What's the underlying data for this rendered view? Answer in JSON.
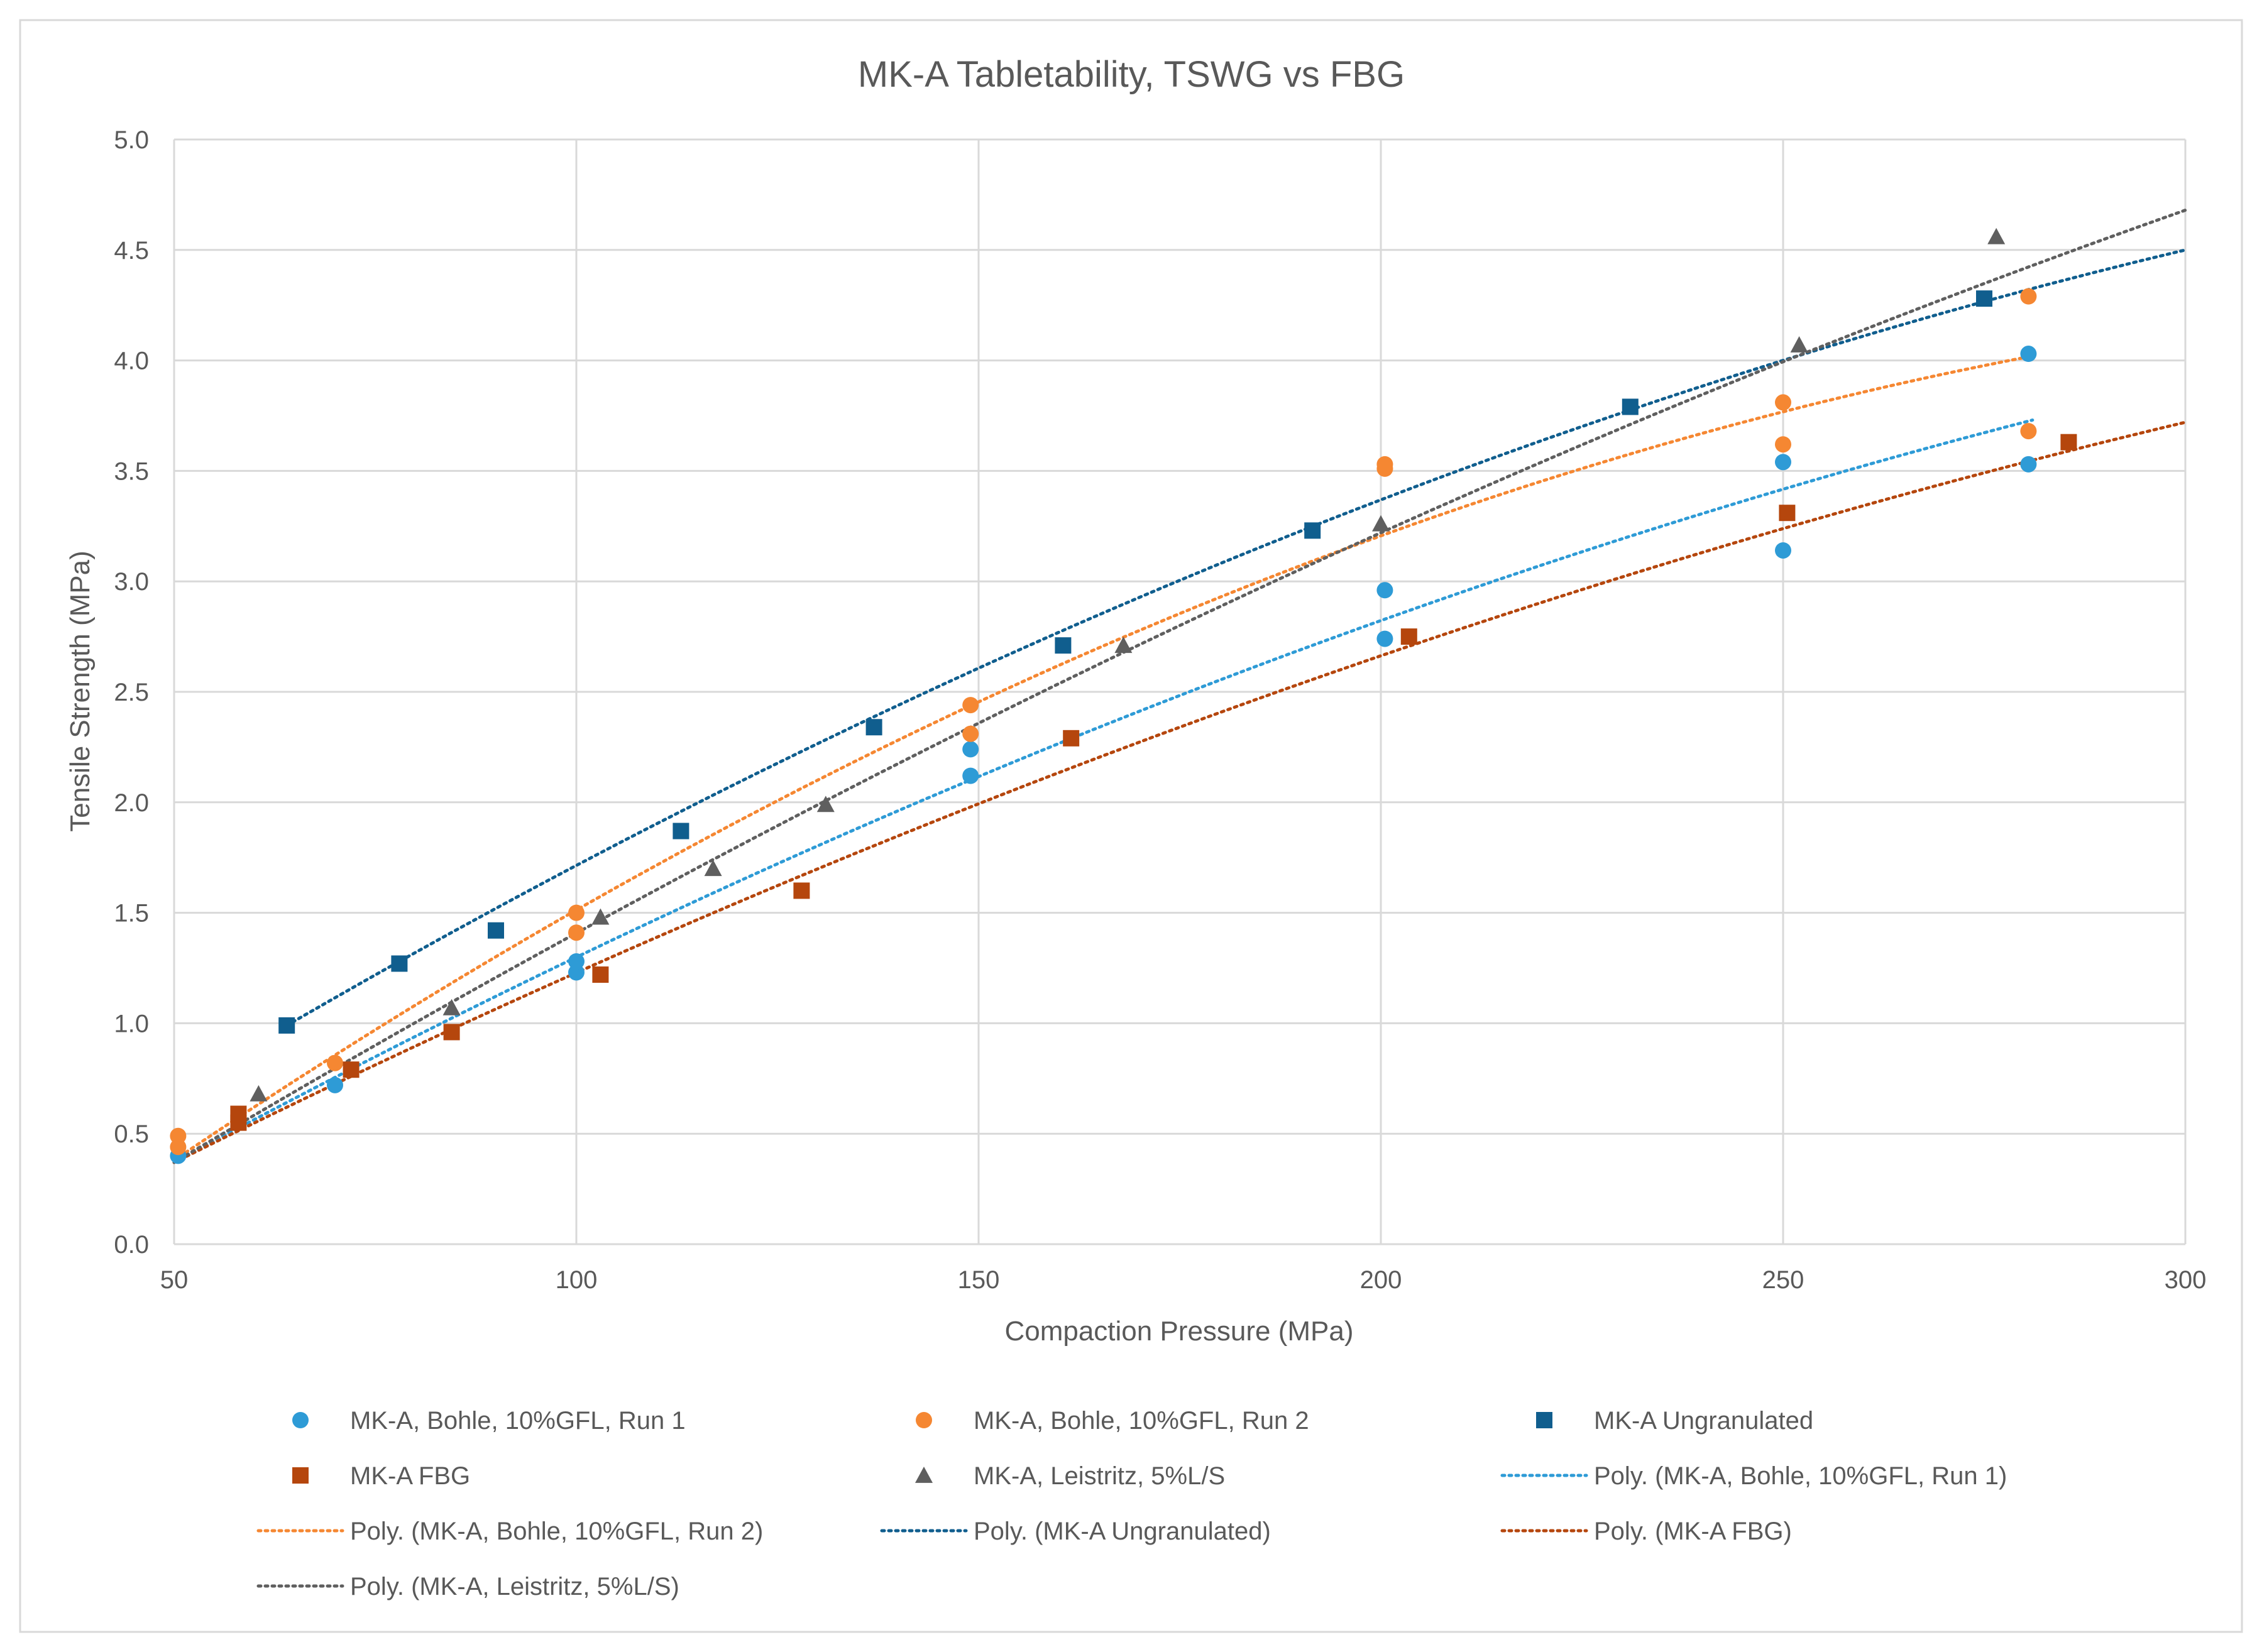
{
  "chart_data": {
    "type": "scatter",
    "title": "MK-A Tabletability, TSWG vs FBG",
    "xlabel": "Compaction Pressure (MPa)",
    "ylabel": "Tensile Strength (MPa)",
    "xlim": [
      50,
      300
    ],
    "ylim": [
      0,
      5
    ],
    "xticks": [
      50,
      100,
      150,
      200,
      250,
      300
    ],
    "yticks": [
      "0.0",
      "0.5",
      "1.0",
      "1.5",
      "2.0",
      "2.5",
      "3.0",
      "3.5",
      "4.0",
      "4.5",
      "5.0"
    ],
    "grid": true,
    "legend_position": "bottom",
    "series": [
      {
        "name": "MK-A, Bohle, 10%GFL, Run 1",
        "marker": "circle",
        "color": "#2E9BD6",
        "points": [
          [
            50.5,
            0.4
          ],
          [
            70,
            0.72
          ],
          [
            100,
            1.23
          ],
          [
            100,
            1.28
          ],
          [
            149,
            2.12
          ],
          [
            149,
            2.24
          ],
          [
            200.5,
            2.74
          ],
          [
            200.5,
            2.96
          ],
          [
            250,
            3.14
          ],
          [
            250,
            3.54
          ],
          [
            280.5,
            3.53
          ],
          [
            280.5,
            4.03
          ]
        ]
      },
      {
        "name": "MK-A, Bohle, 10%GFL, Run 2",
        "marker": "circle",
        "color": "#F58732",
        "points": [
          [
            50.5,
            0.44
          ],
          [
            50.5,
            0.49
          ],
          [
            70,
            0.82
          ],
          [
            100,
            1.41
          ],
          [
            100,
            1.5
          ],
          [
            149,
            2.31
          ],
          [
            149,
            2.44
          ],
          [
            200.5,
            3.51
          ],
          [
            200.5,
            3.53
          ],
          [
            250,
            3.62
          ],
          [
            250,
            3.81
          ],
          [
            280.5,
            3.68
          ],
          [
            280.5,
            4.29
          ]
        ]
      },
      {
        "name": "MK-A Ungranulated",
        "marker": "square",
        "color": "#105E8E",
        "points": [
          [
            64,
            0.99
          ],
          [
            78,
            1.27
          ],
          [
            90,
            1.42
          ],
          [
            113,
            1.87
          ],
          [
            137,
            2.34
          ],
          [
            160.5,
            2.71
          ],
          [
            191.5,
            3.23
          ],
          [
            231,
            3.79
          ],
          [
            275,
            4.28
          ]
        ]
      },
      {
        "name": "MK-A FBG",
        "marker": "square",
        "color": "#B5460D",
        "points": [
          [
            58,
            0.55
          ],
          [
            58,
            0.59
          ],
          [
            72,
            0.79
          ],
          [
            84.5,
            0.96
          ],
          [
            103,
            1.22
          ],
          [
            128,
            1.6
          ],
          [
            161.5,
            2.29
          ],
          [
            203.5,
            2.75
          ],
          [
            250.5,
            3.31
          ],
          [
            285.5,
            3.63
          ]
        ]
      },
      {
        "name": "MK-A, Leistritz, 5%L/S",
        "marker": "triangle",
        "color": "#5F5F5F",
        "points": [
          [
            60.5,
            0.68
          ],
          [
            84.5,
            1.07
          ],
          [
            103,
            1.48
          ],
          [
            117,
            1.7
          ],
          [
            131,
            1.99
          ],
          [
            168,
            2.71
          ],
          [
            200,
            3.26
          ],
          [
            252,
            4.07
          ],
          [
            276.5,
            4.56
          ]
        ]
      }
    ],
    "trendlines": [
      {
        "name": "Poly. (MK-A, Bohle, 10%GFL, Run 1)",
        "series": "MK-A, Bohle, 10%GFL, Run 1",
        "type": "poly2",
        "color": "#2E9BD6",
        "x_range": [
          50,
          281
        ],
        "anchors": [
          [
            50,
            0.37
          ],
          [
            165,
            2.34
          ],
          [
            281,
            3.73
          ]
        ]
      },
      {
        "name": "Poly. (MK-A, Bohle, 10%GFL, Run 2)",
        "series": "MK-A, Bohle, 10%GFL, Run 2",
        "type": "poly2",
        "color": "#F58732",
        "x_range": [
          50,
          281
        ],
        "anchors": [
          [
            50,
            0.38
          ],
          [
            165,
            2.7
          ],
          [
            281,
            4.02
          ]
        ]
      },
      {
        "name": "Poly. (MK-A Ungranulated)",
        "series": "MK-A Ungranulated",
        "type": "poly2",
        "color": "#105E8E",
        "x_range": [
          64,
          300
        ],
        "anchors": [
          [
            64,
            0.99
          ],
          [
            182,
            3.11
          ],
          [
            300,
            4.5
          ]
        ]
      },
      {
        "name": "Poly. (MK-A FBG)",
        "series": "MK-A FBG",
        "type": "poly2",
        "color": "#B5460D",
        "x_range": [
          50,
          300
        ],
        "anchors": [
          [
            50,
            0.37
          ],
          [
            175,
            2.34
          ],
          [
            300,
            3.72
          ]
        ]
      },
      {
        "name": "Poly. (MK-A, Leistritz, 5%L/S)",
        "series": "MK-A, Leistritz, 5%L/S",
        "type": "poly2",
        "color": "#5F5F5F",
        "x_range": [
          50,
          300
        ],
        "anchors": [
          [
            50,
            0.37
          ],
          [
            175,
            2.8
          ],
          [
            300,
            4.68
          ]
        ]
      }
    ],
    "legend": [
      "MK-A, Bohle, 10%GFL, Run 1",
      "MK-A, Bohle, 10%GFL, Run 2",
      "MK-A Ungranulated",
      "MK-A FBG",
      "MK-A, Leistritz, 5%L/S",
      "Poly. (MK-A, Bohle, 10%GFL, Run 1)",
      "Poly. (MK-A, Bohle, 10%GFL, Run 2)",
      "Poly. (MK-A Ungranulated)",
      "Poly. (MK-A FBG)",
      "Poly. (MK-A, Leistritz, 5%L/S)"
    ]
  }
}
